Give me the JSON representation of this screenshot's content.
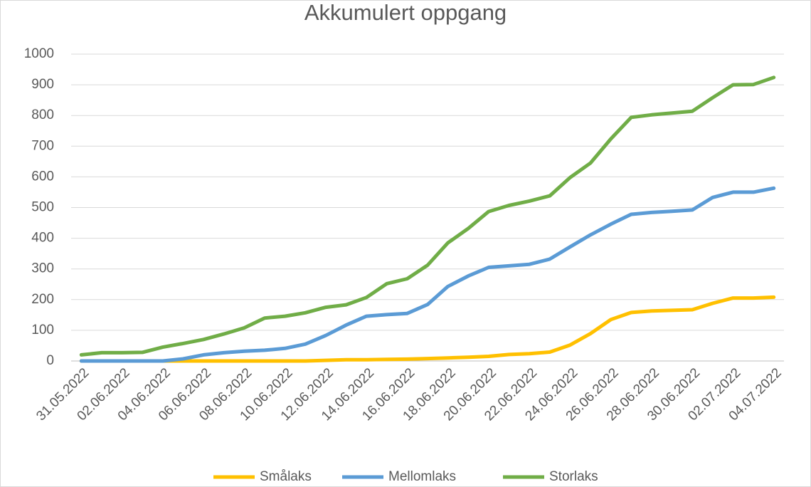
{
  "chart_data": {
    "type": "line",
    "title": "Akkumulert oppgang",
    "categories": [
      "31.05.2022",
      null,
      "02.06.2022",
      null,
      "04.06.2022",
      null,
      "06.06.2022",
      null,
      "08.06.2022",
      null,
      "10.06.2022",
      null,
      "12.06.2022",
      null,
      "14.06.2022",
      null,
      "16.06.2022",
      null,
      "18.06.2022",
      null,
      "20.06.2022",
      null,
      "22.06.2022",
      null,
      "24.06.2022",
      null,
      "26.06.2022",
      null,
      "28.06.2022",
      null,
      "30.06.2022",
      null,
      "02.07.2022",
      null,
      "04.07.2022"
    ],
    "series": [
      {
        "name": "Smålaks",
        "color": "#ffc000",
        "values": [
          0,
          0,
          0,
          0,
          0,
          0,
          0,
          0,
          0,
          0,
          0,
          0,
          2,
          4,
          4,
          5,
          6,
          8,
          10,
          12,
          15,
          21,
          24,
          29,
          52,
          89,
          135,
          158,
          163,
          165,
          167,
          188,
          205,
          205,
          208
        ]
      },
      {
        "name": "Mellomlaks",
        "color": "#5b9bd5",
        "values": [
          0,
          0,
          0,
          0,
          0,
          7,
          20,
          27,
          32,
          35,
          41,
          55,
          83,
          117,
          146,
          151,
          155,
          184,
          243,
          277,
          305,
          310,
          315,
          332,
          372,
          411,
          446,
          478,
          484,
          488,
          492,
          533,
          550,
          550,
          563
        ]
      },
      {
        "name": "Storlaks",
        "color": "#70ad47",
        "values": [
          20,
          27,
          27,
          28,
          45,
          57,
          70,
          88,
          108,
          140,
          146,
          157,
          175,
          183,
          207,
          252,
          268,
          312,
          385,
          432,
          487,
          507,
          521,
          538,
          598,
          645,
          724,
          794,
          802,
          808,
          814,
          858,
          900,
          901,
          924
        ]
      }
    ],
    "ylim": [
      0,
      1000
    ],
    "yticks": [
      0,
      100,
      200,
      300,
      400,
      500,
      600,
      700,
      800,
      900,
      1000
    ],
    "grid": true,
    "legend": "bottom"
  }
}
